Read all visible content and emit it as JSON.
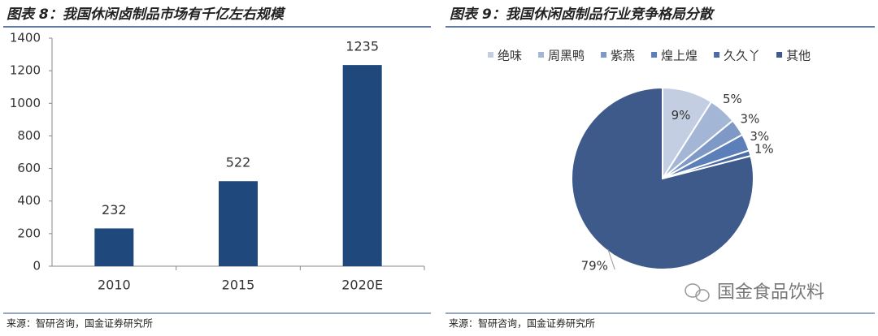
{
  "chart_data": [
    {
      "type": "bar",
      "title": "图表 8：我国休闲卤制品市场有千亿左右规模",
      "categories": [
        "2010",
        "2015",
        "2020E"
      ],
      "values": [
        232,
        522,
        1235
      ],
      "color": "#1f497d",
      "ylim": [
        0,
        1400
      ],
      "yticks": [
        0,
        200,
        400,
        600,
        800,
        1000,
        1200,
        1400
      ],
      "grid": false,
      "source": "来源：智研咨询，国金证券研究所"
    },
    {
      "type": "pie",
      "title": "图表 9：我国休闲卤制品行业竞争格局分散",
      "categories": [
        "绝味",
        "周黑鸭",
        "紫燕",
        "煌上煌",
        "久久丫",
        "其他"
      ],
      "values": [
        9,
        5,
        3,
        3,
        1,
        79
      ],
      "value_labels": [
        "9%",
        "5%",
        "3%",
        "3%",
        "1%",
        "79%"
      ],
      "colors": [
        "#c3cee2",
        "#a4b6d6",
        "#7f99c7",
        "#5c7fba",
        "#4a6ba6",
        "#3d5a8a"
      ],
      "legend": "top",
      "source": "来源：智研咨询，国金证券研究所"
    }
  ],
  "watermark": "国金食品饮料"
}
